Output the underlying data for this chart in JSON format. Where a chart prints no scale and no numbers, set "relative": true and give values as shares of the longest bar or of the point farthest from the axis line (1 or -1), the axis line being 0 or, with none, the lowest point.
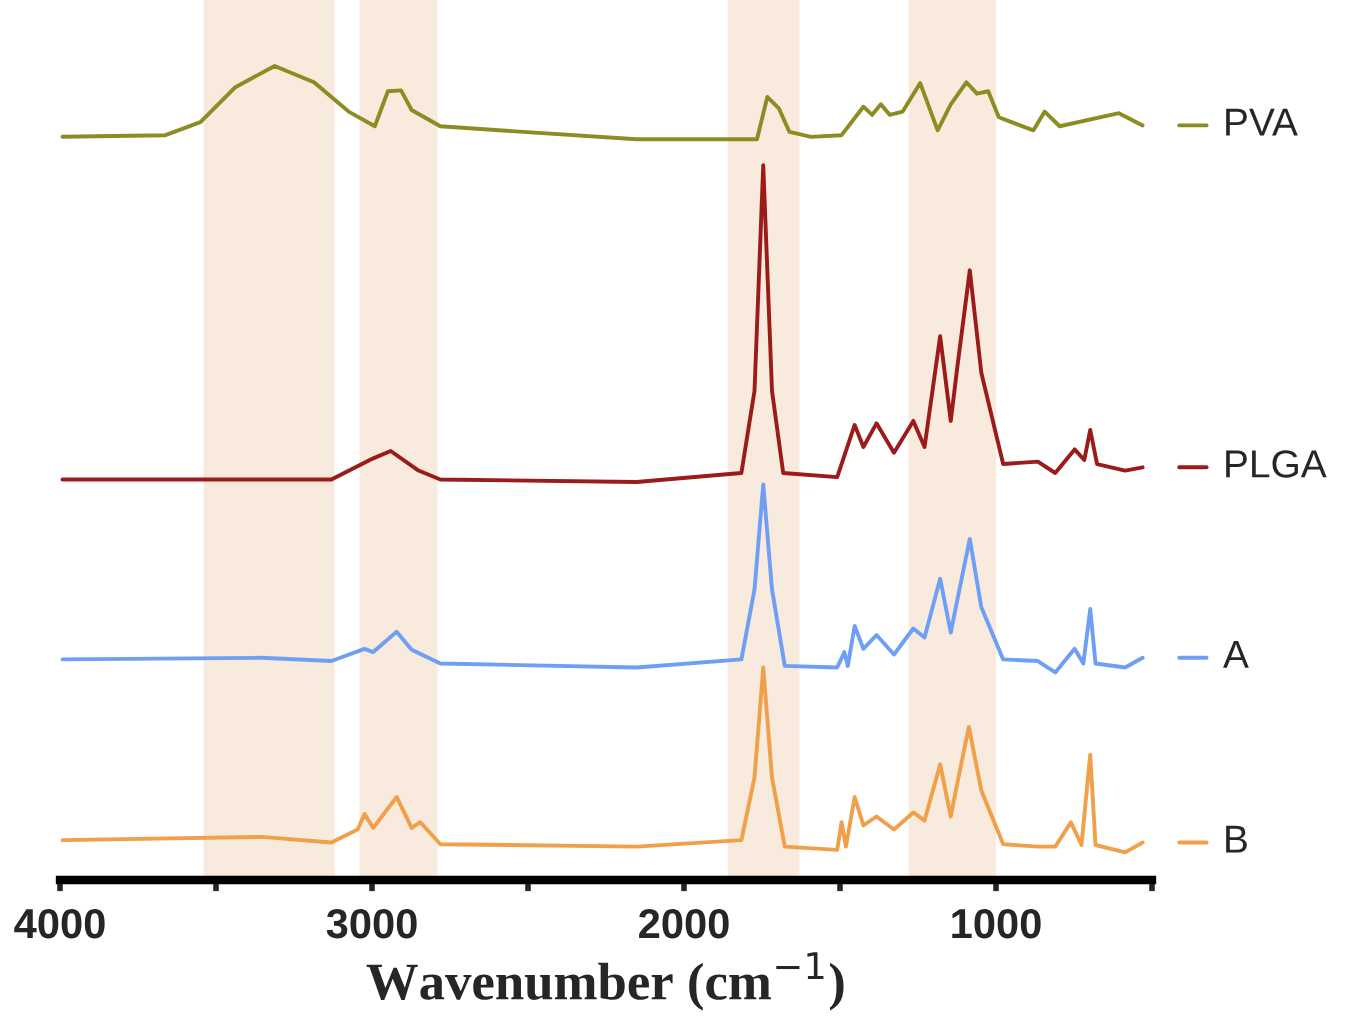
{
  "chart_data": {
    "type": "line",
    "relative": true,
    "xlabel": "Wavenumber (cm$^{−1}$)",
    "xlim": [
      4000,
      500
    ],
    "xticks": [
      4000,
      {
        "value": 3500,
        "label": null
      },
      3000,
      {
        "value": 2500,
        "label": null
      },
      2000,
      {
        "value": 1500,
        "label": null
      },
      1000,
      {
        "value": 500,
        "label": null
      }
    ],
    "legend": "right",
    "grid": false,
    "line_style": "solid",
    "marker": "none",
    "bands": [
      {
        "axis": "x",
        "from": 3540,
        "to": 3120,
        "color": "#f8eadc"
      },
      {
        "axis": "x",
        "from": 3040,
        "to": 2790,
        "color": "#f8eadc"
      },
      {
        "axis": "x",
        "from": 1860,
        "to": 1630,
        "color": "#f8eadc"
      },
      {
        "axis": "x",
        "from": 1280,
        "to": 1000,
        "color": "#f8eadc"
      }
    ],
    "series": [
      {
        "name": "PVA",
        "color": "#8c8c22",
        "x": [
          3992,
          3662,
          3550,
          3438,
          3312,
          3186,
          3075,
          2991,
          2949,
          2907,
          2873,
          2781,
          2515,
          2152,
          1766,
          1733,
          1696,
          1662,
          1593,
          1495,
          1425,
          1397,
          1369,
          1341,
          1299,
          1243,
          1187,
          1145,
          1095,
          1061,
          1025,
          991,
          950,
          880,
          844,
          796,
          606,
          530
        ],
        "values": [
          0.913,
          0.915,
          0.931,
          0.974,
          1.0,
          0.98,
          0.944,
          0.926,
          0.969,
          0.97,
          0.946,
          0.926,
          0.919,
          0.91,
          0.91,
          0.962,
          0.948,
          0.919,
          0.913,
          0.915,
          0.95,
          0.94,
          0.953,
          0.94,
          0.944,
          0.979,
          0.921,
          0.953,
          0.98,
          0.966,
          0.969,
          0.937,
          0.931,
          0.921,
          0.944,
          0.926,
          0.942,
          0.927
        ]
      },
      {
        "name": "PLGA",
        "color": "#9b1a1a",
        "x": [
          3992,
          3130,
          2996,
          2940,
          2851,
          2781,
          2152,
          1816,
          1774,
          1746,
          1718,
          1682,
          1509,
          1453,
          1425,
          1383,
          1327,
          1265,
          1229,
          1179,
          1145,
          1123,
          1084,
          1047,
          977,
          866,
          810,
          748,
          717,
          698,
          676,
          586,
          530
        ],
        "values": [
          0.492,
          0.492,
          0.518,
          0.527,
          0.503,
          0.492,
          0.489,
          0.5,
          0.601,
          0.878,
          0.601,
          0.5,
          0.495,
          0.559,
          0.532,
          0.561,
          0.525,
          0.564,
          0.532,
          0.668,
          0.564,
          0.633,
          0.749,
          0.623,
          0.511,
          0.514,
          0.5,
          0.529,
          0.516,
          0.553,
          0.511,
          0.503,
          0.507
        ]
      },
      {
        "name": "A",
        "color": "#6f9ff5",
        "x": [
          3992,
          3354,
          3130,
          3024,
          2996,
          2921,
          2873,
          2781,
          2152,
          1816,
          1774,
          1746,
          1718,
          1677,
          1509,
          1486,
          1475,
          1453,
          1425,
          1383,
          1327,
          1265,
          1229,
          1179,
          1145,
          1123,
          1084,
          1047,
          977,
          866,
          810,
          748,
          720,
          698,
          681,
          586,
          530
        ],
        "values": [
          0.271,
          0.273,
          0.269,
          0.284,
          0.28,
          0.305,
          0.283,
          0.266,
          0.261,
          0.271,
          0.357,
          0.486,
          0.357,
          0.263,
          0.261,
          0.28,
          0.263,
          0.312,
          0.284,
          0.301,
          0.277,
          0.309,
          0.298,
          0.37,
          0.304,
          0.346,
          0.419,
          0.335,
          0.271,
          0.269,
          0.255,
          0.284,
          0.266,
          0.333,
          0.266,
          0.261,
          0.273
        ]
      },
      {
        "name": "B",
        "color": "#f0a04a",
        "x": [
          3992,
          3354,
          3130,
          3046,
          3024,
          2996,
          2921,
          2873,
          2845,
          2781,
          2152,
          1816,
          1774,
          1746,
          1718,
          1677,
          1509,
          1495,
          1481,
          1453,
          1425,
          1383,
          1327,
          1265,
          1229,
          1179,
          1145,
          1123,
          1087,
          1047,
          977,
          866,
          810,
          760,
          726,
          698,
          681,
          586,
          530
        ],
        "values": [
          0.049,
          0.053,
          0.046,
          0.062,
          0.081,
          0.064,
          0.102,
          0.064,
          0.071,
          0.044,
          0.041,
          0.049,
          0.126,
          0.261,
          0.126,
          0.041,
          0.037,
          0.071,
          0.041,
          0.102,
          0.067,
          0.078,
          0.062,
          0.083,
          0.073,
          0.142,
          0.078,
          0.121,
          0.188,
          0.11,
          0.044,
          0.041,
          0.041,
          0.071,
          0.043,
          0.154,
          0.043,
          0.034,
          0.046
        ]
      }
    ]
  }
}
